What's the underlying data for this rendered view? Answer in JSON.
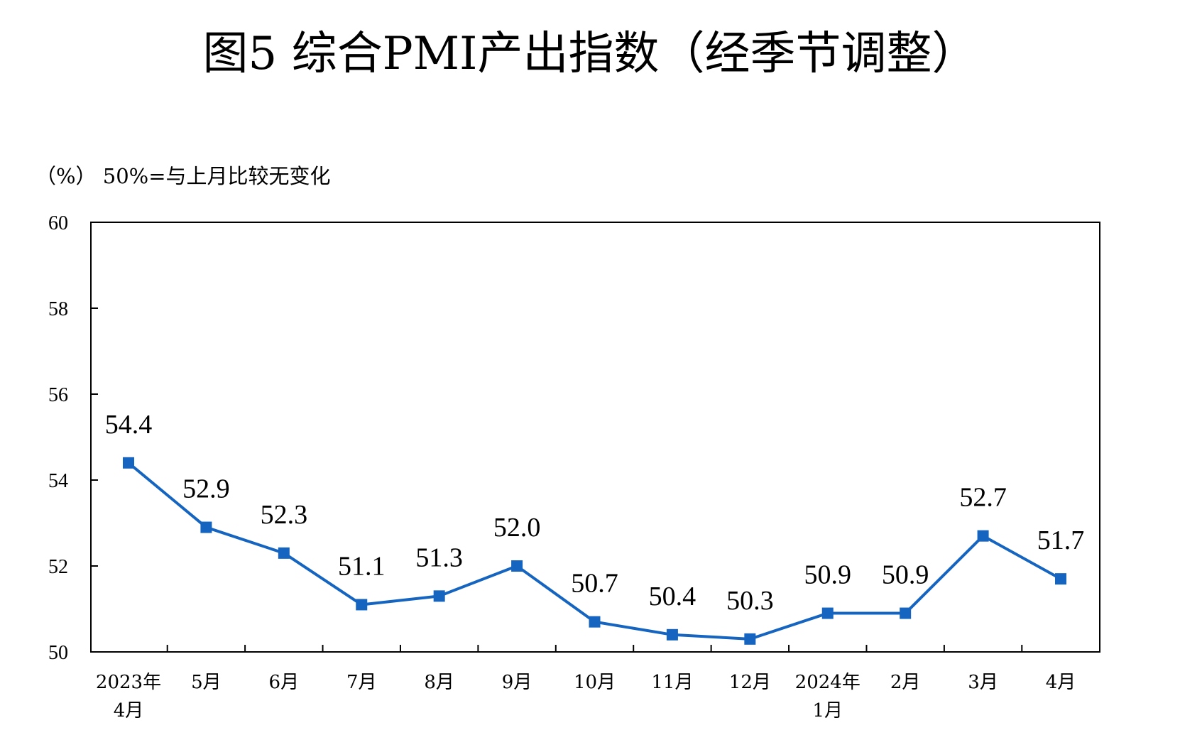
{
  "chart_data": {
    "type": "line",
    "title": "图5  综合PMI产出指数（经季节调整）",
    "subtitle": "（%）  50%=与上月比较无变化",
    "categories": [
      [
        "2023年",
        "4月"
      ],
      [
        "5月"
      ],
      [
        "6月"
      ],
      [
        "7月"
      ],
      [
        "8月"
      ],
      [
        "9月"
      ],
      [
        "10月"
      ],
      [
        "11月"
      ],
      [
        "12月"
      ],
      [
        "2024年",
        "1月"
      ],
      [
        "2月"
      ],
      [
        "3月"
      ],
      [
        "4月"
      ]
    ],
    "series": [
      {
        "values": [
          54.4,
          52.9,
          52.3,
          51.1,
          51.3,
          52.0,
          50.7,
          50.4,
          50.3,
          50.9,
          50.9,
          52.7,
          51.7
        ],
        "labels": [
          "54.4",
          "52.9",
          "52.3",
          "51.1",
          "51.3",
          "52.0",
          "50.7",
          "50.4",
          "50.3",
          "50.9",
          "50.9",
          "52.7",
          "51.7"
        ],
        "color": "#1565C0"
      }
    ],
    "ylim": [
      50,
      60
    ],
    "yticks": [
      "50",
      "52",
      "54",
      "56",
      "58",
      "60"
    ],
    "grid": false,
    "legend": "none"
  }
}
